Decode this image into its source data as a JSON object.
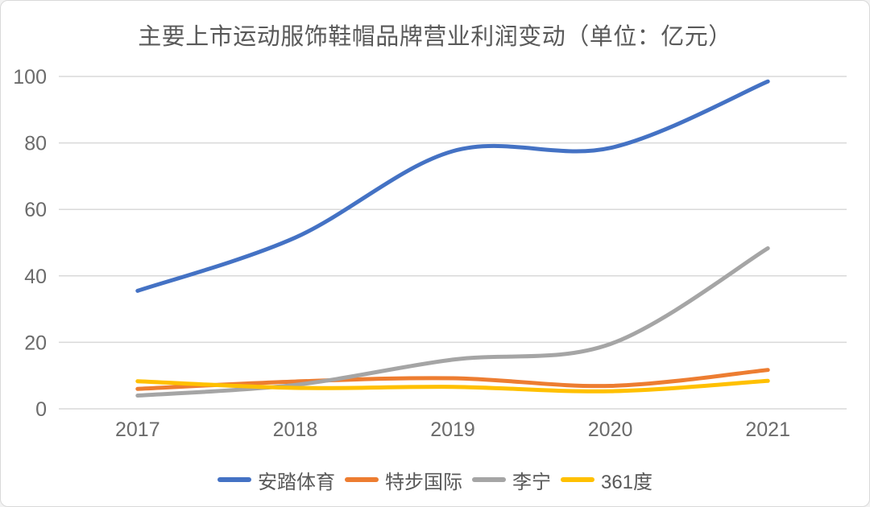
{
  "chart_data": {
    "type": "line",
    "title": "主要上市运动服饰鞋帽品牌营业利润变动（单位：亿元）",
    "categories": [
      "2017",
      "2018",
      "2019",
      "2020",
      "2021"
    ],
    "series": [
      {
        "name": "安踏体育",
        "color": "#4472C4",
        "values": [
          35.5,
          51.5,
          77.5,
          78.5,
          98.5
        ]
      },
      {
        "name": "特步国际",
        "color": "#ED7D31",
        "values": [
          6.0,
          8.2,
          9.2,
          6.9,
          11.7
        ]
      },
      {
        "name": "李宁",
        "color": "#A5A5A5",
        "values": [
          4.0,
          7.2,
          14.8,
          19.5,
          48.3
        ]
      },
      {
        "name": "361度",
        "color": "#FFC000",
        "values": [
          8.3,
          6.3,
          6.6,
          5.3,
          8.4
        ]
      }
    ],
    "ylim": [
      0,
      100
    ],
    "yticks": [
      0,
      20,
      40,
      60,
      80,
      100
    ],
    "xlabel": "",
    "ylabel": "",
    "grid": "horizontal",
    "line_style": "smooth",
    "legend_position": "bottom"
  },
  "colors": {
    "text": "#595959",
    "axis_text": "#6b6b6b",
    "gridline": "#d9d9d9",
    "background": "#ffffff",
    "border": "#d9d9d9"
  }
}
